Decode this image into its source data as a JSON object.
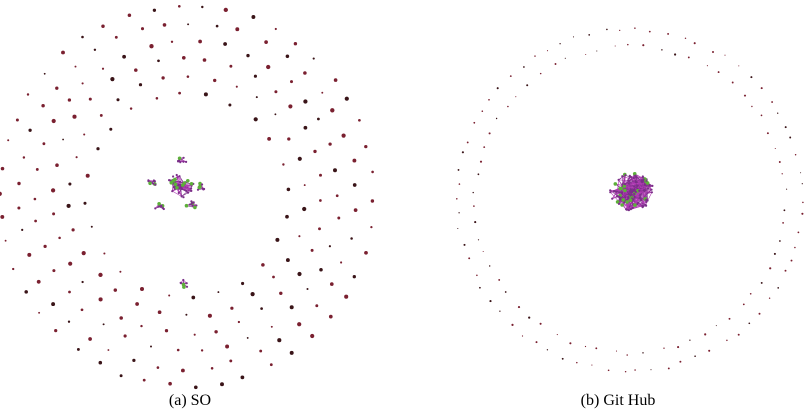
{
  "figure": {
    "panels": [
      {
        "id": "a",
        "caption": "(a) SO"
      },
      {
        "id": "b",
        "caption": "(b) Git Hub"
      }
    ]
  },
  "colors": {
    "node_dark": "#3a1418",
    "node_red": "#7a2030",
    "edge_magenta": "#b13bb4",
    "edge_purple": "#7a2f88",
    "node_green": "#5db03a",
    "background": "#ffffff"
  }
}
